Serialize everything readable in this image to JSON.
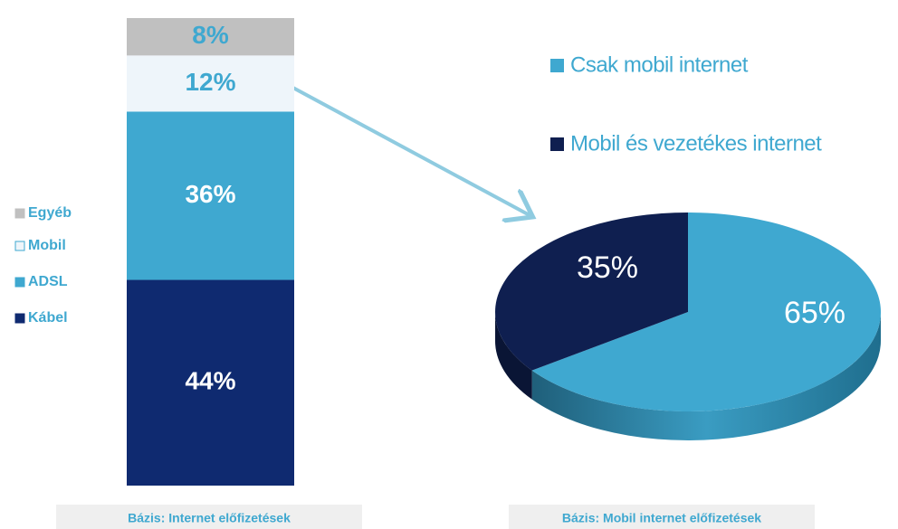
{
  "chart_data": [
    {
      "type": "stacked-bar",
      "series": [
        {
          "name": "Kábel",
          "color": "#0f2a70",
          "values": [
            44
          ],
          "value_labels": [
            "44%"
          ],
          "label_color": "#ffffff"
        },
        {
          "name": "ADSL",
          "color": "#3fa8d0",
          "values": [
            36
          ],
          "value_labels": [
            "36%"
          ],
          "label_color": "#ffffff"
        },
        {
          "name": "Mobil",
          "color": "#eef5fa",
          "values": [
            12
          ],
          "value_labels": [
            "12%"
          ],
          "label_color": "#3fa8d0"
        },
        {
          "name": "Egyéb",
          "color": "#c0c0c0",
          "values": [
            8
          ],
          "value_labels": [
            "8%"
          ],
          "label_color": "#3fa8d0"
        }
      ],
      "footnote": "Bázis: Internet előfizetések"
    },
    {
      "type": "pie",
      "categories": [
        "Csak mobil internet",
        "Mobil és vezetékes internet"
      ],
      "values": [
        65,
        35
      ],
      "value_labels": [
        "65%",
        "35%"
      ],
      "colors": [
        "#3fa8d0",
        "#0f1f50"
      ],
      "footnote": "Bázis: Mobil internet előfizetések"
    }
  ]
}
